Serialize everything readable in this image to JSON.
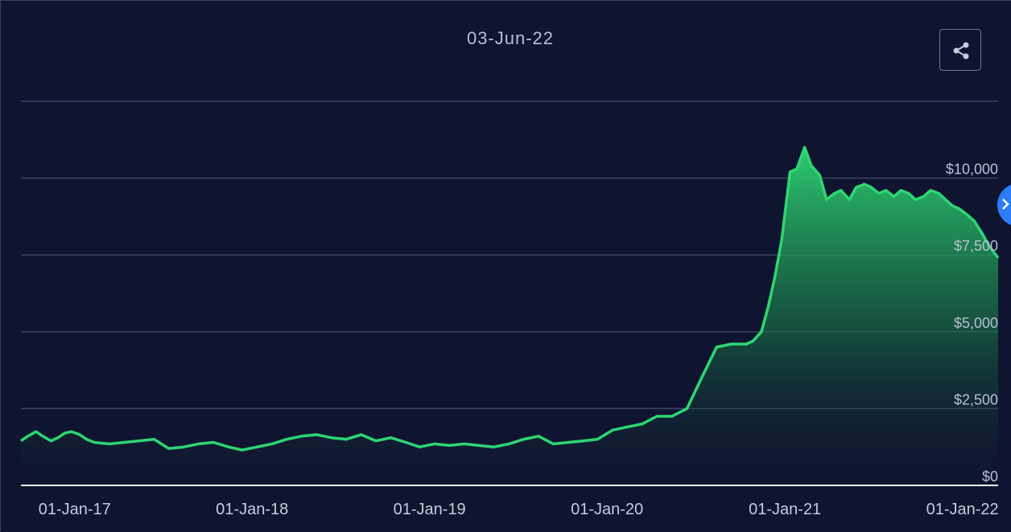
{
  "chart_data": {
    "type": "area",
    "title": "03-Jun-22",
    "xlabel": "",
    "ylabel": "",
    "y_ticks": [
      "$0",
      "$2,500",
      "$5,000",
      "$7,500",
      "$10,000"
    ],
    "y_tick_values": [
      0,
      2500,
      5000,
      7500,
      10000
    ],
    "ylim": [
      0,
      12500
    ],
    "x_ticks": [
      "01-Jan-17",
      "01-Jan-18",
      "01-Jan-19",
      "01-Jan-20",
      "01-Jan-21",
      "01-Jan-22"
    ],
    "x_tick_values": [
      "2017-01-01",
      "2018-01-01",
      "2019-01-01",
      "2020-01-01",
      "2021-01-01",
      "2022-01-01"
    ],
    "xlim": [
      "2016-12-01",
      "2022-06-03"
    ],
    "grid": true,
    "series": [
      {
        "color": "#2ed573",
        "x": [
          "2016-12-01",
          "2016-12-15",
          "2017-01-01",
          "2017-01-15",
          "2017-02-01",
          "2017-02-15",
          "2017-03-01",
          "2017-03-15",
          "2017-04-01",
          "2017-04-15",
          "2017-05-01",
          "2017-06-01",
          "2017-07-01",
          "2017-08-01",
          "2017-09-01",
          "2017-10-01",
          "2017-11-01",
          "2017-12-01",
          "2018-01-01",
          "2018-02-01",
          "2018-03-01",
          "2018-04-01",
          "2018-05-01",
          "2018-06-01",
          "2018-07-01",
          "2018-08-01",
          "2018-09-01",
          "2018-10-01",
          "2018-11-01",
          "2018-12-01",
          "2019-01-01",
          "2019-02-01",
          "2019-03-01",
          "2019-04-01",
          "2019-05-01",
          "2019-06-01",
          "2019-07-01",
          "2019-08-01",
          "2019-09-01",
          "2019-10-01",
          "2019-11-01",
          "2019-12-01",
          "2020-01-01",
          "2020-02-01",
          "2020-03-01",
          "2020-04-01",
          "2020-05-01",
          "2020-06-01",
          "2020-07-01",
          "2020-08-01",
          "2020-09-01",
          "2020-10-01",
          "2020-11-01",
          "2020-12-01",
          "2021-01-01",
          "2021-01-15",
          "2021-02-01",
          "2021-02-15",
          "2021-03-01",
          "2021-03-15",
          "2021-04-01",
          "2021-04-15",
          "2021-05-01",
          "2021-05-15",
          "2021-06-01",
          "2021-06-15",
          "2021-07-01",
          "2021-07-15",
          "2021-08-01",
          "2021-08-15",
          "2021-09-01",
          "2021-09-15",
          "2021-10-01",
          "2021-10-15",
          "2021-11-01",
          "2021-11-15",
          "2021-12-01",
          "2021-12-15",
          "2022-01-01",
          "2022-01-15",
          "2022-02-01",
          "2022-02-15",
          "2022-03-01",
          "2022-03-15",
          "2022-04-01",
          "2022-04-15",
          "2022-05-01",
          "2022-05-15",
          "2022-06-03"
        ],
        "values": [
          1450,
          1600,
          1750,
          1600,
          1450,
          1550,
          1700,
          1750,
          1650,
          1500,
          1400,
          1350,
          1400,
          1450,
          1500,
          1200,
          1250,
          1350,
          1400,
          1250,
          1150,
          1250,
          1350,
          1500,
          1600,
          1650,
          1550,
          1500,
          1650,
          1450,
          1550,
          1400,
          1250,
          1350,
          1300,
          1350,
          1300,
          1250,
          1350,
          1500,
          1600,
          1350,
          1400,
          1450,
          1500,
          1800,
          1900,
          2000,
          2250,
          2250,
          2500,
          3500,
          4500,
          4600,
          4600,
          4700,
          5000,
          5800,
          6800,
          8000,
          10200,
          10300,
          11000,
          10400,
          10100,
          9300,
          9500,
          9600,
          9300,
          9700,
          9800,
          9700,
          9500,
          9600,
          9400,
          9600,
          9500,
          9300,
          9400,
          9600,
          9500,
          9300,
          9100,
          9000,
          8800,
          8600,
          8200,
          7800,
          7400
        ]
      }
    ]
  },
  "icons": {
    "share": "share-icon",
    "marker": "chevron-icon"
  }
}
